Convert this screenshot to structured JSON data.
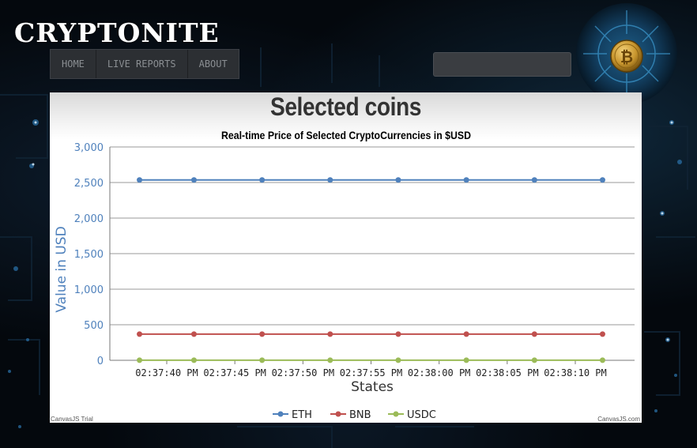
{
  "brand": {
    "logo_text": "CRYPTONITE"
  },
  "nav": {
    "items": [
      {
        "label": "HOME"
      },
      {
        "label": "LIVE REPORTS"
      },
      {
        "label": "ABOUT"
      }
    ]
  },
  "search": {
    "value": "",
    "placeholder": ""
  },
  "panel": {
    "heading": "Selected coins",
    "watermark_left": "CanvasJS Trial",
    "watermark_right": "CanvasJS.com"
  },
  "chart_data": {
    "type": "line",
    "title": "Real-time Price of Selected CryptoCurrencies in $USD",
    "xlabel": "States",
    "ylabel": "Value in USD",
    "ylim": [
      0,
      3000
    ],
    "yticks": [
      "0",
      "500",
      "1,000",
      "1,500",
      "2,000",
      "2,500",
      "3,000"
    ],
    "xticks": [
      "02:37:40 PM",
      "02:37:45 PM",
      "02:37:50 PM",
      "02:37:55 PM",
      "02:38:00 PM",
      "02:38:05 PM",
      "02:38:10 PM"
    ],
    "x": [
      "02:37:38 PM",
      "02:37:42 PM",
      "02:37:47 PM",
      "02:37:52 PM",
      "02:37:57 PM",
      "02:38:02 PM",
      "02:38:07 PM",
      "02:38:12 PM"
    ],
    "legend_position": "bottom",
    "grid": true,
    "series": [
      {
        "name": "ETH",
        "color": "#4f81bc",
        "values": [
          2536,
          2536,
          2536,
          2536,
          2536,
          2536,
          2536,
          2536
        ]
      },
      {
        "name": "BNB",
        "color": "#c0504e",
        "values": [
          368,
          368,
          368,
          368,
          368,
          368,
          368,
          368
        ]
      },
      {
        "name": "USDC",
        "color": "#9bbb58",
        "values": [
          1,
          1,
          1,
          1,
          1,
          1,
          1,
          1
        ]
      }
    ]
  }
}
